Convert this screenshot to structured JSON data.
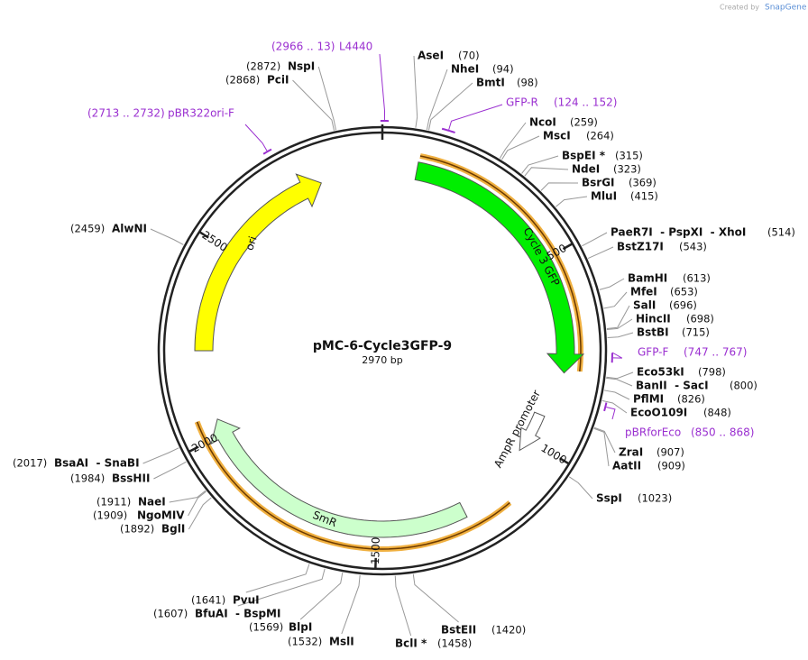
{
  "header": {
    "created_by": "Created by",
    "brand": "SnapGene"
  },
  "plasmid": {
    "name": "pMC-6-Cycle3GFP-9",
    "length": "2970 bp"
  },
  "ticks": [
    "500",
    "1000",
    "1500",
    "2000",
    "2500"
  ],
  "features": [
    {
      "label": "Cycle 3 GFP"
    },
    {
      "label": "ori"
    },
    {
      "label": "SmR"
    },
    {
      "label": "AmpR promoter"
    }
  ],
  "primers": [
    {
      "name": "L4440",
      "range": "(2966 .. 13)"
    },
    {
      "name": "GFP-R",
      "range": "(124 .. 152)"
    },
    {
      "name": "pBR322ori-F",
      "range": "(2713 .. 2732)"
    },
    {
      "name": "GFP-F",
      "range": "(747 .. 767)"
    },
    {
      "name": "pBRforEco",
      "range": "(850 .. 868)"
    }
  ],
  "sites": [
    {
      "name": "AseI",
      "position": "(70)"
    },
    {
      "name": "NheI",
      "position": "(94)"
    },
    {
      "name": "BmtI",
      "position": "(98)"
    },
    {
      "name": "NcoI",
      "position": "(259)"
    },
    {
      "name": "MscI",
      "position": "(264)"
    },
    {
      "name": "BspEI *",
      "position": "(315)"
    },
    {
      "name": "NdeI",
      "position": "(323)"
    },
    {
      "name": "BsrGI",
      "position": "(369)"
    },
    {
      "name": "MluI",
      "position": "(415)"
    },
    {
      "name": "PaeR7I  - PspXI  - XhoI",
      "position": "(514)"
    },
    {
      "name": "BstZ17I",
      "position": "(543)"
    },
    {
      "name": "BamHI",
      "position": "(613)"
    },
    {
      "name": "MfeI",
      "position": "(653)"
    },
    {
      "name": "SalI",
      "position": "(696)"
    },
    {
      "name": "HincII",
      "position": "(698)"
    },
    {
      "name": "BstBI",
      "position": "(715)"
    },
    {
      "name": "Eco53kI",
      "position": "(798)"
    },
    {
      "name": "BanII  - SacI",
      "position": "(800)"
    },
    {
      "name": "PflMI",
      "position": "(826)"
    },
    {
      "name": "EcoO109I",
      "position": "(848)"
    },
    {
      "name": "ZraI",
      "position": "(907)"
    },
    {
      "name": "AatII",
      "position": "(909)"
    },
    {
      "name": "SspI",
      "position": "(1023)"
    },
    {
      "name": "BstEII",
      "position": "(1420)"
    },
    {
      "name": "BclI *",
      "position": "(1458)"
    },
    {
      "name": "MslI",
      "position": "(1532)"
    },
    {
      "name": "BlpI",
      "position": "(1569)"
    },
    {
      "name": "BfuAI  - BspMI",
      "position": "(1607)"
    },
    {
      "name": "PvuI",
      "position": "(1641)"
    },
    {
      "name": "BglI",
      "position": "(1892)"
    },
    {
      "name": "NgoMIV",
      "position": "(1909)"
    },
    {
      "name": "NaeI",
      "position": "(1911)"
    },
    {
      "name": "BssHII",
      "position": "(1984)"
    },
    {
      "name": "BsaAI  - SnaBI",
      "position": "(2017)"
    },
    {
      "name": "AlwNI",
      "position": "(2459)"
    },
    {
      "name": "PciI",
      "position": "(2868)"
    },
    {
      "name": "NspI",
      "position": "(2872)"
    }
  ]
}
